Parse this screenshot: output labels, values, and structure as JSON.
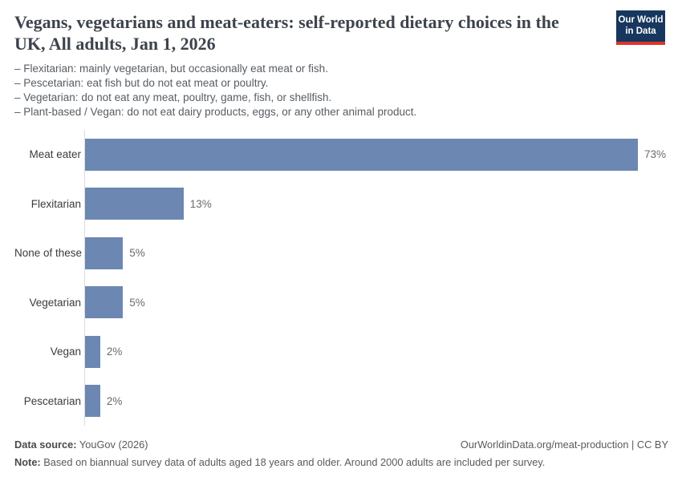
{
  "header": {
    "title": "Vegans, vegetarians and meat-eaters: self-reported dietary choices in the UK, All adults, Jan 1, 2026",
    "subtitle_lines": [
      "– Flexitarian: mainly vegetarian, but occasionally eat meat or fish.",
      "– Pescetarian: eat fish but do not eat meat or poultry.",
      "– Vegetarian: do not eat any meat, poultry, game, fish, or shellfish.",
      "– Plant-based / Vegan: do not eat dairy products, eggs, or any other animal product."
    ],
    "logo": {
      "line1": "Our World",
      "line2": "in Data"
    }
  },
  "chart_data": {
    "type": "bar",
    "orientation": "horizontal",
    "categories": [
      "Meat eater",
      "Flexitarian",
      "None of these",
      "Vegetarian",
      "Vegan",
      "Pescetarian"
    ],
    "values": [
      73,
      13,
      5,
      5,
      2,
      2
    ],
    "value_labels": [
      "73%",
      "13%",
      "5%",
      "5%",
      "2%",
      "2%"
    ],
    "title": "Vegans, vegetarians and meat-eaters: self-reported dietary choices in the UK, All adults, Jan 1, 2026",
    "xlabel": "",
    "ylabel": "",
    "xlim": [
      0,
      73
    ],
    "grid": false,
    "legend": false,
    "bar_color": "#6c87b1"
  },
  "colors": {
    "bar": "#6c87b1",
    "logo_navy": "#18375f",
    "logo_red": "#dc352c",
    "title_text": "#3d434c",
    "subtitle_text": "#575d63",
    "axis_line": "#dcdcdc"
  },
  "footer": {
    "datasource_label": "Data source:",
    "datasource_value": " YouGov (2026)",
    "credit": "OurWorldinData.org/meat-production | CC BY",
    "note_label": "Note:",
    "note_value": " Based on biannual survey data of adults aged 18 years and older. Around 2000 adults are included per survey."
  }
}
